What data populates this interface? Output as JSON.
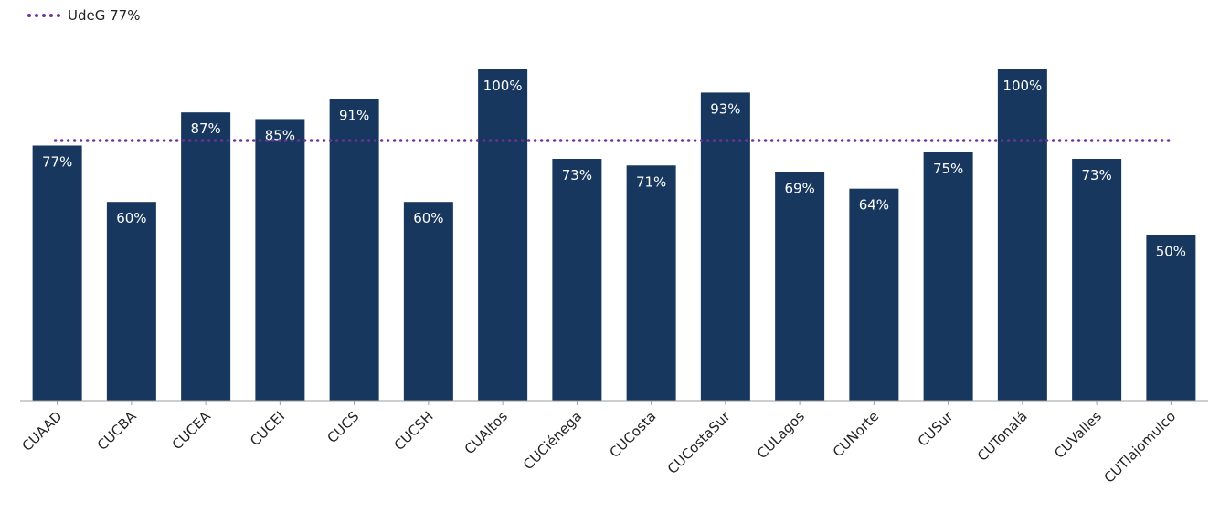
{
  "chart_data": {
    "type": "bar",
    "categories": [
      "CUAAD",
      "CUCBA",
      "CUCEA",
      "CUCEI",
      "CUCS",
      "CUCSH",
      "CUAltos",
      "CUCiénega",
      "CUCosta",
      "CUCostaSur",
      "CULagos",
      "CUNorte",
      "CUSur",
      "CUTonalá",
      "CUValles",
      "CUTlajomulco"
    ],
    "values": [
      77,
      60,
      87,
      85,
      91,
      60,
      100,
      73,
      71,
      93,
      69,
      64,
      75,
      100,
      73,
      50
    ],
    "value_labels": [
      "77%",
      "60%",
      "87%",
      "85%",
      "91%",
      "60%",
      "100%",
      "73%",
      "71%",
      "93%",
      "69%",
      "64%",
      "75%",
      "100%",
      "73%",
      "50%"
    ],
    "ylim": [
      0,
      100
    ],
    "reference_line": {
      "name": "UdeG 77%",
      "value": 77,
      "style": "dotted",
      "color": "#7030a0"
    },
    "bar_color": "#17375e",
    "legend": "top-left",
    "grid": false
  }
}
